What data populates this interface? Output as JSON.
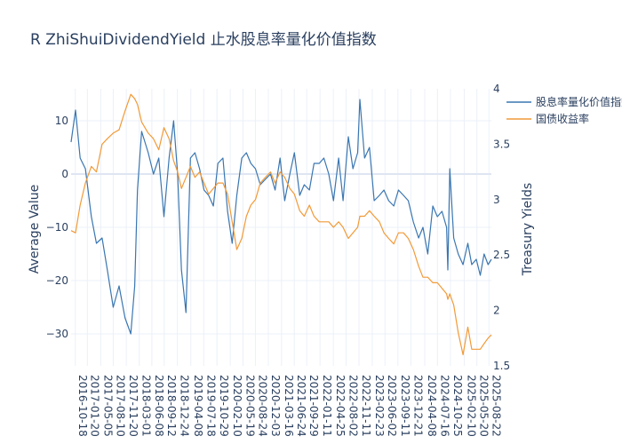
{
  "chart_data": {
    "type": "line",
    "title": "R      ZhiShuiDividendYield      止水股息率量化价值指数",
    "y_left_label": "Average   Value",
    "y_right_label": "Treasury   Yields",
    "y_left_ticks": [
      "10",
      "0",
      "−10",
      "−20",
      "−30"
    ],
    "y_right_ticks": [
      "4",
      "3.5",
      "3",
      "2.5",
      "2",
      "1.5"
    ],
    "y_left_range": [
      -36,
      16
    ],
    "y_right_range": [
      1.5,
      4.0
    ],
    "x_range": [
      "2016-09-15",
      "2025-09-10"
    ],
    "x_ticks": [
      "2016-10-18",
      "2017-01-20",
      "2017-05-05",
      "2017-08-10",
      "2017-11-20",
      "2018-03-01",
      "2018-06-08",
      "2018-09-12",
      "2018-12-24",
      "2019-04-08",
      "2019-07-18",
      "2019-10-29",
      "2020-02-10",
      "2020-05-19",
      "2020-08-24",
      "2020-12-03",
      "2021-03-16",
      "2021-06-24",
      "2021-09-29",
      "2022-01-11",
      "2022-04-25",
      "2022-08-02",
      "2022-11-11",
      "2023-02-23",
      "2023-06-02",
      "2023-09-11",
      "2023-12-21",
      "2024-04-08",
      "2024-07-16",
      "2024-10-25",
      "2025-02-10",
      "2025-05-20",
      "2025-08-22"
    ],
    "legend_position": "top-right",
    "grid": true,
    "series": [
      {
        "name": "股息率量化价值指数",
        "axis": "left",
        "color": "#3a76b1",
        "x": [
          "2016-09-15",
          "2016-10-20",
          "2016-11-25",
          "2017-01-05",
          "2017-02-20",
          "2017-04-01",
          "2017-05-15",
          "2017-06-25",
          "2017-08-10",
          "2017-09-25",
          "2017-11-10",
          "2017-12-25",
          "2018-01-25",
          "2018-02-15",
          "2018-03-20",
          "2018-05-10",
          "2018-06-20",
          "2018-08-01",
          "2018-09-10",
          "2018-10-20",
          "2018-11-25",
          "2018-12-26",
          "2019-01-25",
          "2019-03-01",
          "2019-04-05",
          "2019-05-10",
          "2019-06-15",
          "2019-07-20",
          "2019-08-25",
          "2019-10-01",
          "2019-11-05",
          "2019-12-15",
          "2020-01-20",
          "2020-02-25",
          "2020-04-01",
          "2020-05-10",
          "2020-06-15",
          "2020-07-20",
          "2020-08-25",
          "2020-10-01",
          "2020-11-10",
          "2020-12-20",
          "2021-01-25",
          "2021-03-05",
          "2021-04-10",
          "2021-05-20",
          "2021-06-25",
          "2021-08-05",
          "2021-09-10",
          "2021-10-20",
          "2021-11-25",
          "2022-01-05",
          "2022-02-10",
          "2022-03-20",
          "2022-04-26",
          "2022-06-05",
          "2022-07-10",
          "2022-08-20",
          "2022-09-25",
          "2022-11-01",
          "2022-11-18",
          "2022-12-25",
          "2023-02-01",
          "2023-03-10",
          "2023-04-20",
          "2023-05-25",
          "2023-07-01",
          "2023-08-10",
          "2023-09-15",
          "2023-10-25",
          "2023-12-01",
          "2024-01-10",
          "2024-02-20",
          "2024-03-25",
          "2024-05-01",
          "2024-06-10",
          "2024-07-15",
          "2024-08-20",
          "2024-09-25",
          "2024-10-05",
          "2024-10-20",
          "2024-11-20",
          "2024-12-25",
          "2025-02-01",
          "2025-03-10",
          "2025-04-10",
          "2025-05-15",
          "2025-06-15",
          "2025-07-15",
          "2025-08-15",
          "2025-09-10"
        ],
        "y": [
          6,
          12,
          3,
          1,
          -8,
          -13,
          -12,
          -18,
          -25,
          -21,
          -27,
          -30,
          -21,
          -3,
          8,
          4,
          0,
          3,
          -8,
          3,
          10,
          0,
          -18,
          -26,
          3,
          4,
          1,
          -3,
          -4,
          -6,
          2,
          3,
          -7,
          -13,
          -4,
          3,
          4,
          2,
          1,
          -2,
          -1,
          0,
          -3,
          3,
          -5,
          0,
          4,
          -4,
          -2,
          -3,
          2,
          2,
          3,
          0,
          -5,
          3,
          -5,
          7,
          1,
          4,
          14,
          3,
          5,
          -5,
          -4,
          -3,
          -5,
          -6,
          -3,
          -4,
          -5,
          -9,
          -12,
          -10,
          -15,
          -6,
          -8,
          -7,
          -10,
          -18,
          1,
          -12,
          -15,
          -17,
          -13,
          -17,
          -16,
          -19,
          -15,
          -17,
          -16
        ]
      },
      {
        "name": "国债收益率",
        "axis": "right",
        "color": "#f29a38",
        "x": [
          "2016-09-15",
          "2016-10-20",
          "2016-11-25",
          "2017-01-05",
          "2017-02-20",
          "2017-04-01",
          "2017-05-15",
          "2017-06-25",
          "2017-08-10",
          "2017-09-25",
          "2017-11-10",
          "2017-12-25",
          "2018-01-25",
          "2018-02-15",
          "2018-03-20",
          "2018-05-10",
          "2018-06-20",
          "2018-08-01",
          "2018-09-10",
          "2018-10-20",
          "2018-11-25",
          "2018-12-26",
          "2019-01-25",
          "2019-03-01",
          "2019-04-05",
          "2019-05-10",
          "2019-06-15",
          "2019-07-20",
          "2019-08-25",
          "2019-10-01",
          "2019-11-05",
          "2019-12-15",
          "2020-01-20",
          "2020-02-25",
          "2020-04-01",
          "2020-05-10",
          "2020-06-15",
          "2020-07-20",
          "2020-08-25",
          "2020-10-01",
          "2020-11-10",
          "2020-12-20",
          "2021-01-25",
          "2021-03-05",
          "2021-04-10",
          "2021-05-20",
          "2021-06-25",
          "2021-08-05",
          "2021-09-10",
          "2021-10-20",
          "2021-11-25",
          "2022-01-05",
          "2022-02-10",
          "2022-03-20",
          "2022-04-26",
          "2022-06-05",
          "2022-07-10",
          "2022-08-20",
          "2022-09-25",
          "2022-11-01",
          "2022-11-18",
          "2022-12-25",
          "2023-02-01",
          "2023-03-10",
          "2023-04-20",
          "2023-05-25",
          "2023-07-01",
          "2023-08-10",
          "2023-09-15",
          "2023-10-25",
          "2023-12-01",
          "2024-01-10",
          "2024-02-20",
          "2024-03-25",
          "2024-05-01",
          "2024-06-10",
          "2024-07-15",
          "2024-08-20",
          "2024-09-25",
          "2024-10-05",
          "2024-10-20",
          "2024-11-20",
          "2024-12-25",
          "2025-02-01",
          "2025-03-10",
          "2025-04-10",
          "2025-05-15",
          "2025-06-15",
          "2025-07-15",
          "2025-08-15",
          "2025-09-10"
        ],
        "y": [
          2.72,
          2.7,
          2.95,
          3.15,
          3.3,
          3.25,
          3.5,
          3.55,
          3.6,
          3.63,
          3.8,
          3.95,
          3.91,
          3.86,
          3.7,
          3.6,
          3.55,
          3.45,
          3.65,
          3.55,
          3.35,
          3.25,
          3.1,
          3.2,
          3.3,
          3.2,
          3.25,
          3.15,
          3.05,
          3.1,
          3.15,
          3.15,
          3.05,
          2.8,
          2.55,
          2.65,
          2.85,
          2.95,
          3.0,
          3.15,
          3.2,
          3.25,
          3.15,
          3.25,
          3.2,
          3.1,
          3.05,
          2.9,
          2.85,
          2.95,
          2.85,
          2.8,
          2.8,
          2.8,
          2.75,
          2.8,
          2.75,
          2.65,
          2.7,
          2.75,
          2.85,
          2.85,
          2.9,
          2.85,
          2.8,
          2.7,
          2.65,
          2.6,
          2.7,
          2.7,
          2.65,
          2.55,
          2.4,
          2.3,
          2.3,
          2.25,
          2.25,
          2.2,
          2.15,
          2.1,
          2.15,
          2.05,
          1.8,
          1.6,
          1.85,
          1.65,
          1.65,
          1.65,
          1.7,
          1.75,
          1.78
        ]
      }
    ]
  }
}
